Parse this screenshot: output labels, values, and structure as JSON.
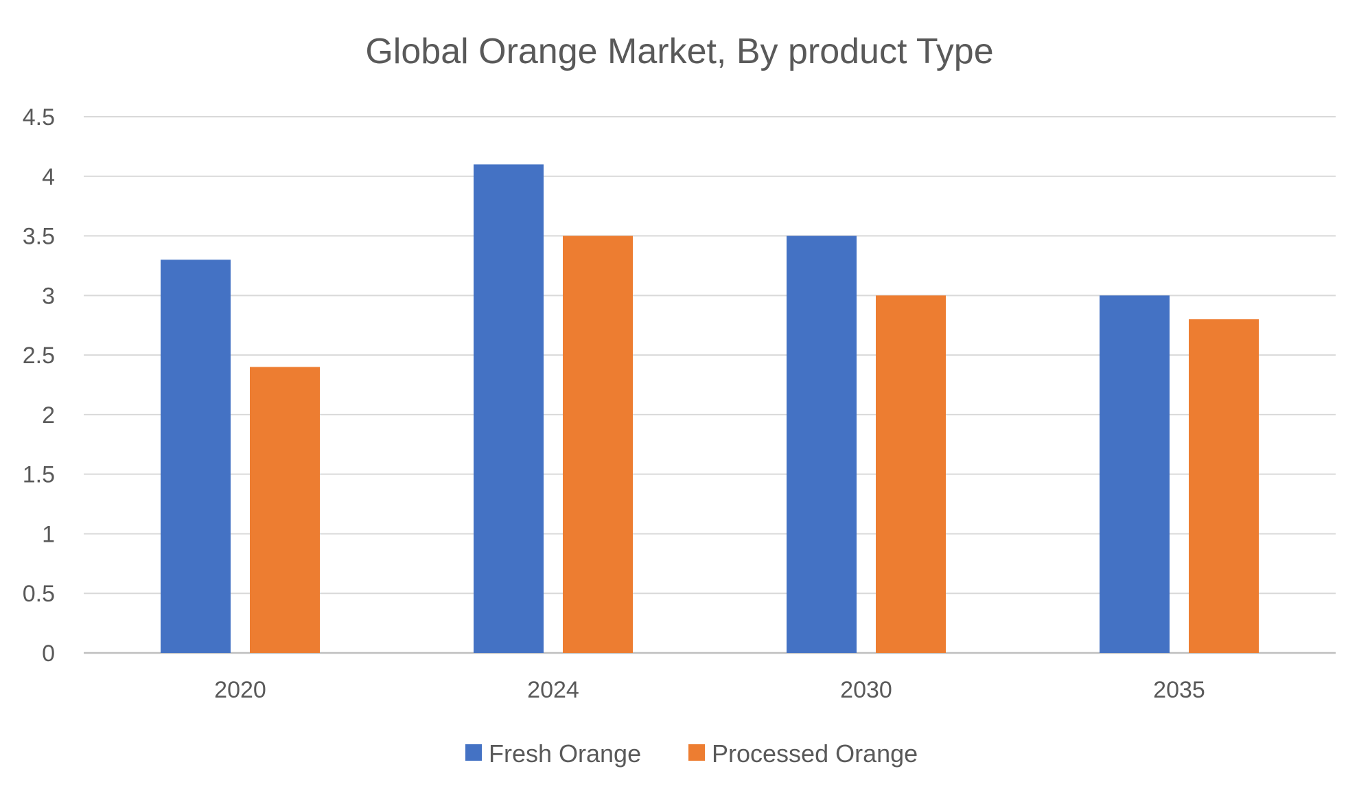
{
  "chart_data": {
    "type": "bar",
    "title": "Global Orange Market, By product Type",
    "xlabel": "",
    "ylabel": "",
    "categories": [
      "2020",
      "2024",
      "2030",
      "2035"
    ],
    "series": [
      {
        "name": "Fresh Orange",
        "color": "#4472C4",
        "values": [
          3.3,
          4.1,
          3.5,
          3.0
        ]
      },
      {
        "name": "Processed Orange",
        "color": "#ED7D31",
        "values": [
          2.4,
          3.5,
          3.0,
          2.8
        ]
      }
    ],
    "ylim": [
      0,
      4.5
    ],
    "yticks": [
      "0",
      "0.5",
      "1",
      "1.5",
      "2",
      "2.5",
      "3",
      "3.5",
      "4",
      "4.5"
    ],
    "grid": true,
    "legend_position": "bottom"
  }
}
